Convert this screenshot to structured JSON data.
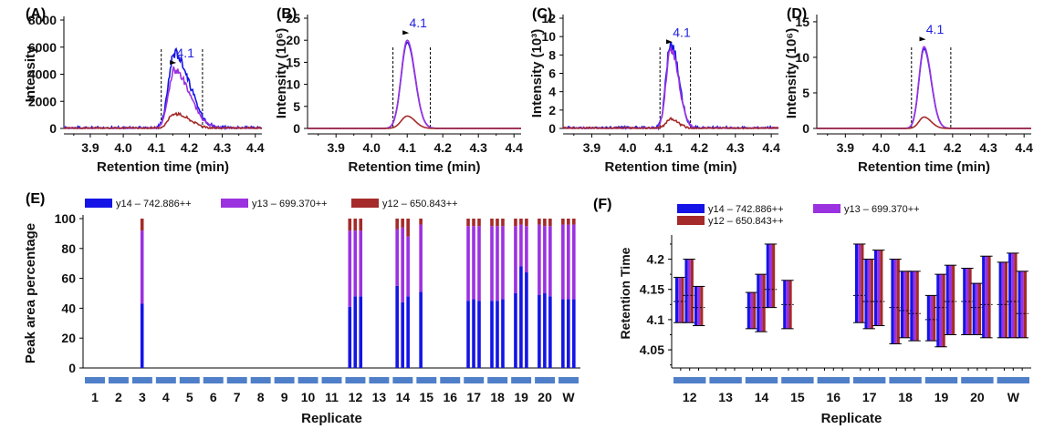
{
  "colors": {
    "y14": "#1414e6",
    "y13": "#9b32e0",
    "y12": "#a52a2a",
    "box": "#4f7fc8",
    "axis": "#000000"
  },
  "chromatograms": [
    {
      "panel": "(A)",
      "ylabel": "Intensity",
      "yticks": [
        "0",
        "2000",
        "4000",
        "6000",
        "8000"
      ],
      "ymax": 8000,
      "xticks": [
        "3.9",
        "4.0",
        "4.1",
        "4.2",
        "4.3",
        "4.4"
      ],
      "xlabel": "Retention time (min)",
      "xlim": [
        3.82,
        4.42
      ],
      "peak_label": "4.1",
      "boundaries": [
        4.115,
        4.24
      ],
      "apex": 4.155,
      "widths": [
        0.018,
        0.045
      ],
      "series": [
        {
          "name": "y14",
          "height": 5600,
          "noisy": true
        },
        {
          "name": "y13",
          "height": 4300,
          "noisy": true
        },
        {
          "name": "y12",
          "height": 1100,
          "noisy": true
        }
      ]
    },
    {
      "panel": "(B)",
      "ylabel": "Intensity (10⁶)",
      "yticks": [
        "0",
        "5",
        "10",
        "15",
        "20",
        "25"
      ],
      "ymax": 25,
      "xticks": [
        "3.9",
        "4.0",
        "4.1",
        "4.2",
        "4.3",
        "4.4"
      ],
      "xlabel": "Retention time (min)",
      "xlim": [
        3.82,
        4.42
      ],
      "peak_label": "4.1",
      "boundaries": [
        4.06,
        4.165
      ],
      "apex": 4.1,
      "widths": [
        0.017,
        0.022
      ],
      "series": [
        {
          "name": "y14",
          "height": 19.5,
          "noisy": false
        },
        {
          "name": "y13",
          "height": 20,
          "noisy": false
        },
        {
          "name": "y12",
          "height": 2.8,
          "noisy": false
        }
      ]
    },
    {
      "panel": "(C)",
      "ylabel": "Intensity (10³)",
      "yticks": [
        "0",
        "2",
        "4",
        "6",
        "8",
        "10",
        "12"
      ],
      "ymax": 12,
      "xticks": [
        "3.9",
        "4.0",
        "4.1",
        "4.2",
        "4.3",
        "4.4"
      ],
      "xlabel": "Retention time (min)",
      "xlim": [
        3.82,
        4.42
      ],
      "peak_label": "4.1",
      "boundaries": [
        4.09,
        4.175
      ],
      "apex": 4.12,
      "widths": [
        0.013,
        0.022
      ],
      "series": [
        {
          "name": "y14",
          "height": 9.3,
          "noisy": true
        },
        {
          "name": "y13",
          "height": 8.6,
          "noisy": true
        },
        {
          "name": "y12",
          "height": 1.0,
          "noisy": true
        }
      ]
    },
    {
      "panel": "(D)",
      "ylabel": "Intensity (10⁶)",
      "yticks": [
        "0",
        "5",
        "10",
        "15"
      ],
      "ymax": 15.5,
      "xticks": [
        "3.9",
        "4.0",
        "4.1",
        "4.2",
        "4.3",
        "4.4"
      ],
      "xlabel": "Retention time (min)",
      "xlim": [
        3.82,
        4.42
      ],
      "peak_label": "4.1",
      "boundaries": [
        4.085,
        4.195
      ],
      "apex": 4.12,
      "widths": [
        0.014,
        0.02
      ],
      "series": [
        {
          "name": "y14",
          "height": 11.2,
          "noisy": false
        },
        {
          "name": "y13",
          "height": 11.5,
          "noisy": false
        },
        {
          "name": "y12",
          "height": 1.6,
          "noisy": false
        }
      ]
    }
  ],
  "chart_data": [
    {
      "type": "bar",
      "panel": "(E)",
      "title": "",
      "xlabel": "Replicate",
      "ylabel": "Peak area percentage",
      "ylim": [
        0,
        100
      ],
      "yticks": [
        "0",
        "20",
        "40",
        "60",
        "80",
        "100"
      ],
      "categories": [
        "1",
        "2",
        "3",
        "4",
        "5",
        "6",
        "7",
        "8",
        "9",
        "10",
        "11",
        "12",
        "13",
        "14",
        "15",
        "16",
        "17",
        "18",
        "19",
        "20",
        "W"
      ],
      "legend": [
        {
          "key": "y14",
          "label": "y14 – 742.886++"
        },
        {
          "key": "y13",
          "label": "y13 – 699.370++"
        },
        {
          "key": "y12",
          "label": "y12 – 650.843++"
        }
      ],
      "bars_per_category": 3,
      "series": [
        {
          "name": "y14",
          "values": [
            [
              0,
              0,
              0
            ],
            [
              0,
              0,
              0
            ],
            [
              0,
              43,
              0
            ],
            [
              0,
              0,
              0
            ],
            [
              0,
              0,
              0
            ],
            [
              0,
              0,
              0
            ],
            [
              0,
              0,
              0
            ],
            [
              0,
              0,
              0
            ],
            [
              0,
              0,
              0
            ],
            [
              0,
              0,
              0
            ],
            [
              0,
              0,
              0
            ],
            [
              41,
              48,
              48
            ],
            [
              0,
              0,
              0
            ],
            [
              55,
              44,
              48
            ],
            [
              51,
              0,
              0
            ],
            [
              0,
              0,
              0
            ],
            [
              45,
              46,
              45
            ],
            [
              45,
              45,
              46
            ],
            [
              50,
              68,
              64
            ],
            [
              49,
              50,
              48
            ],
            [
              46,
              46,
              46
            ]
          ]
        },
        {
          "name": "y13",
          "values": [
            [
              0,
              0,
              0
            ],
            [
              0,
              0,
              0
            ],
            [
              0,
              49,
              0
            ],
            [
              0,
              0,
              0
            ],
            [
              0,
              0,
              0
            ],
            [
              0,
              0,
              0
            ],
            [
              0,
              0,
              0
            ],
            [
              0,
              0,
              0
            ],
            [
              0,
              0,
              0
            ],
            [
              0,
              0,
              0
            ],
            [
              0,
              0,
              0
            ],
            [
              51,
              44,
              44
            ],
            [
              0,
              0,
              0
            ],
            [
              38,
              50,
              40
            ],
            [
              45,
              0,
              0
            ],
            [
              0,
              0,
              0
            ],
            [
              50,
              49,
              50
            ],
            [
              50,
              50,
              49
            ],
            [
              45,
              28,
              31
            ],
            [
              47,
              45,
              47
            ],
            [
              50,
              50,
              50
            ]
          ]
        },
        {
          "name": "y12",
          "values": [
            [
              0,
              0,
              0
            ],
            [
              0,
              0,
              0
            ],
            [
              0,
              8,
              0
            ],
            [
              0,
              0,
              0
            ],
            [
              0,
              0,
              0
            ],
            [
              0,
              0,
              0
            ],
            [
              0,
              0,
              0
            ],
            [
              0,
              0,
              0
            ],
            [
              0,
              0,
              0
            ],
            [
              0,
              0,
              0
            ],
            [
              0,
              0,
              0
            ],
            [
              8,
              8,
              8
            ],
            [
              0,
              0,
              0
            ],
            [
              7,
              6,
              12
            ],
            [
              4,
              0,
              0
            ],
            [
              0,
              0,
              0
            ],
            [
              5,
              5,
              5
            ],
            [
              5,
              5,
              5
            ],
            [
              5,
              4,
              5
            ],
            [
              4,
              5,
              5
            ],
            [
              4,
              4,
              4
            ]
          ]
        }
      ]
    },
    {
      "type": "range",
      "panel": "(F)",
      "title": "",
      "xlabel": "Replicate",
      "ylabel": "Retention Time",
      "ylim": [
        4.02,
        4.24
      ],
      "yticks": [
        "4.05",
        "4.1",
        "4.15",
        "4.2"
      ],
      "categories": [
        "12",
        "13",
        "14",
        "15",
        "16",
        "17",
        "18",
        "19",
        "20",
        "W"
      ],
      "legend": [
        {
          "key": "y14",
          "label": "y14 – 742.886++"
        },
        {
          "key": "y13",
          "label": "y13 – 699.370++"
        },
        {
          "key": "y12",
          "label": "y12 – 650.843++"
        }
      ],
      "ranges": [
        [
          [
            4.095,
            4.17,
            4.13
          ],
          [
            4.095,
            4.2,
            4.14
          ],
          [
            4.09,
            4.155,
            4.12
          ]
        ],
        [
          null,
          null,
          null
        ],
        [
          [
            4.085,
            4.145,
            4.12
          ],
          [
            4.08,
            4.175,
            4.12
          ],
          [
            4.12,
            4.225,
            4.15
          ]
        ],
        [
          [
            4.085,
            4.165,
            4.125
          ],
          null,
          null
        ],
        [
          null,
          null,
          null
        ],
        [
          [
            4.095,
            4.225,
            4.14
          ],
          [
            4.085,
            4.2,
            4.13
          ],
          [
            4.09,
            4.215,
            4.13
          ]
        ],
        [
          [
            4.06,
            4.2,
            4.12
          ],
          [
            4.07,
            4.18,
            4.115
          ],
          [
            4.065,
            4.18,
            4.11
          ]
        ],
        [
          [
            4.065,
            4.14,
            4.1
          ],
          [
            4.055,
            4.175,
            4.12
          ],
          [
            4.075,
            4.19,
            4.13
          ]
        ],
        [
          [
            4.075,
            4.185,
            4.13
          ],
          [
            4.075,
            4.16,
            4.12
          ],
          [
            4.07,
            4.205,
            4.125
          ]
        ],
        [
          [
            4.07,
            4.195,
            4.125
          ],
          [
            4.07,
            4.21,
            4.13
          ],
          [
            4.07,
            4.18,
            4.11
          ]
        ]
      ]
    }
  ]
}
